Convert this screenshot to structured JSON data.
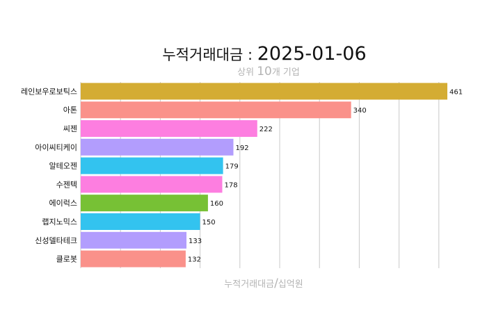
{
  "title": {
    "main": "누적거래대금 : ",
    "date": "2025-01-06"
  },
  "subtitle": {
    "prefix": "상위 ",
    "count": "10",
    "suffix": "개 기업"
  },
  "xlabel": {
    "left": "누적거래대금",
    "slash": "/",
    "right": "십억원"
  },
  "chart_data": {
    "type": "bar",
    "orientation": "horizontal",
    "categories": [
      "레인보우로보틱스",
      "아톤",
      "씨젠",
      "아이씨티케이",
      "알테오젠",
      "수젠텍",
      "에이럭스",
      "랩지노믹스",
      "신성델타테크",
      "클로봇"
    ],
    "values": [
      461,
      340,
      222,
      192,
      179,
      178,
      160,
      150,
      133,
      132
    ],
    "colors": [
      "#d4ac33",
      "#fa918a",
      "#fd7ee0",
      "#b29dfd",
      "#33c3ef",
      "#fd7ee0",
      "#77c135",
      "#33c3ef",
      "#b29dfd",
      "#fa918a"
    ],
    "xlim": [
      0,
      461
    ],
    "grid": true,
    "legend": "none"
  }
}
